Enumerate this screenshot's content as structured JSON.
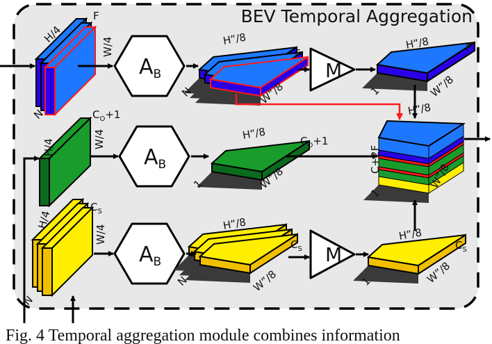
{
  "title": "BEV Temporal Aggregation",
  "hex_label": {
    "main": "A",
    "sub": "B"
  },
  "merge_label": "M",
  "labels": {
    "F": "F",
    "H4": "H/4",
    "W4": "W/4",
    "N": "N",
    "H8": "H”/8",
    "W8": "W”/8",
    "one": "1",
    "co": {
      "main": "C",
      "sub": "O",
      "suffix": "+1"
    },
    "cs": {
      "main": "C",
      "sub": "S"
    },
    "c2f": "C+2F"
  },
  "caption": "Fig. 4  Temporal aggregation module combines information",
  "colors": {
    "blue": "#1e78ff",
    "dark_blue": "#2a00e6",
    "green": "#1a9c2c",
    "dark_green": "#0c6a1e",
    "yellow": "#ffee00",
    "dark_yellow": "#f0c000",
    "red": "#ff1a1a",
    "shadow": "#3a3a3a",
    "panel": "#e8e8e8"
  }
}
